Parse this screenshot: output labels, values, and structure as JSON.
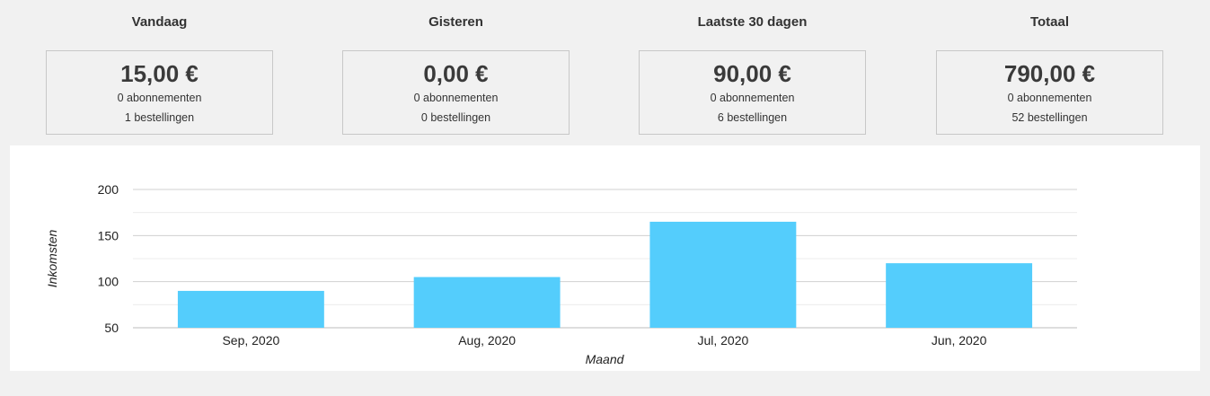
{
  "stats": [
    {
      "heading": "Vandaag",
      "amount": "15,00 €",
      "subscriptions": "0 abonnementen",
      "orders": "1 bestellingen"
    },
    {
      "heading": "Gisteren",
      "amount": "0,00 €",
      "subscriptions": "0 abonnementen",
      "orders": "0 bestellingen"
    },
    {
      "heading": "Laatste 30 dagen",
      "amount": "90,00 €",
      "subscriptions": "0 abonnementen",
      "orders": "6 bestellingen"
    },
    {
      "heading": "Totaal",
      "amount": "790,00 €",
      "subscriptions": "0 abonnementen",
      "orders": "52 bestellingen"
    }
  ],
  "chart_data": {
    "type": "bar",
    "title": "",
    "categories": [
      "Sep, 2020",
      "Aug, 2020",
      "Jul, 2020",
      "Jun, 2020"
    ],
    "values": [
      90,
      105,
      165,
      120
    ],
    "xlabel": "Maand",
    "ylabel": "Inkomsten",
    "ylim": [
      50,
      200
    ],
    "yticks": [
      50,
      100,
      150,
      200
    ],
    "grid": true,
    "bar_color": "#54cdfc"
  }
}
